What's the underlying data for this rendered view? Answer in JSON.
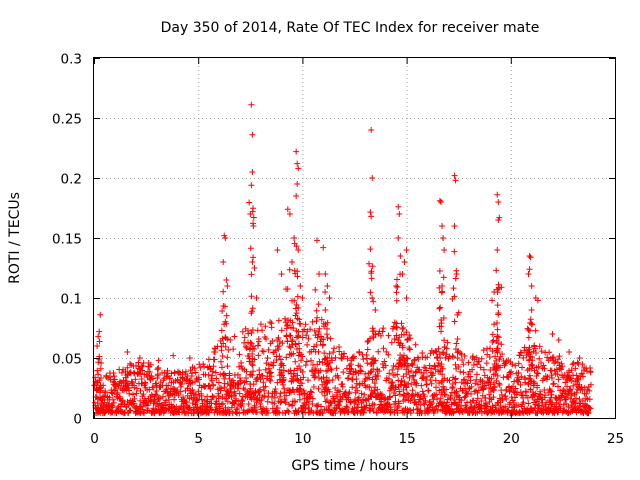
{
  "chart_data": {
    "type": "scatter",
    "title": "Day 350 of 2014, Rate Of TEC Index for receiver mate",
    "xlabel": "GPS time / hours",
    "ylabel": "ROTI / TECUs",
    "xlim": [
      0,
      25
    ],
    "ylim": [
      0,
      0.3
    ],
    "xticks": [
      0,
      5,
      10,
      15,
      20,
      25
    ],
    "xtick_labels": [
      "0",
      "5",
      "10",
      "15",
      "20",
      "25"
    ],
    "yticks": [
      0,
      0.05,
      0.1,
      0.15,
      0.2,
      0.25,
      0.3
    ],
    "ytick_labels": [
      "0",
      "0.05",
      "0.1",
      "0.15",
      "0.2",
      "0.25",
      "0.3"
    ],
    "grid": true,
    "marker": "+",
    "series": [
      {
        "name": "ROTI",
        "color": "#ff0000",
        "bands": [
          [
            0.0,
            0.03
          ],
          [
            1.0,
            0.035
          ],
          [
            2.0,
            0.045
          ],
          [
            3.0,
            0.04
          ],
          [
            4.0,
            0.035
          ],
          [
            5.0,
            0.04
          ],
          [
            6.0,
            0.06
          ],
          [
            7.0,
            0.07
          ],
          [
            8.0,
            0.075
          ],
          [
            9.0,
            0.08
          ],
          [
            10.0,
            0.075
          ],
          [
            11.0,
            0.08
          ],
          [
            12.0,
            0.05
          ],
          [
            13.0,
            0.06
          ],
          [
            14.0,
            0.08
          ],
          [
            15.0,
            0.07
          ],
          [
            16.0,
            0.05
          ],
          [
            17.0,
            0.06
          ],
          [
            18.0,
            0.045
          ],
          [
            19.0,
            0.06
          ],
          [
            20.0,
            0.045
          ],
          [
            21.0,
            0.06
          ],
          [
            22.0,
            0.05
          ],
          [
            23.0,
            0.045
          ],
          [
            23.8,
            0.04
          ]
        ],
        "peaks": [
          [
            0.15,
            0.06
          ],
          [
            0.2,
            0.068
          ],
          [
            0.25,
            0.072
          ],
          [
            0.3,
            0.086
          ],
          [
            1.6,
            0.055
          ],
          [
            2.2,
            0.05
          ],
          [
            3.1,
            0.048
          ],
          [
            3.8,
            0.052
          ],
          [
            4.6,
            0.05
          ],
          [
            6.2,
            0.13
          ],
          [
            6.25,
            0.152
          ],
          [
            6.3,
            0.15
          ],
          [
            6.35,
            0.115
          ],
          [
            6.4,
            0.11
          ],
          [
            7.55,
            0.261
          ],
          [
            7.6,
            0.236
          ],
          [
            7.6,
            0.205
          ],
          [
            7.55,
            0.194
          ],
          [
            7.5,
            0.17
          ],
          [
            7.65,
            0.16
          ],
          [
            7.6,
            0.13
          ],
          [
            7.7,
            0.125
          ],
          [
            7.8,
            0.1
          ],
          [
            8.8,
            0.14
          ],
          [
            9.0,
            0.12
          ],
          [
            9.3,
            0.174
          ],
          [
            9.4,
            0.17
          ],
          [
            9.5,
            0.13
          ],
          [
            9.7,
            0.222
          ],
          [
            9.75,
            0.212
          ],
          [
            9.8,
            0.208
          ],
          [
            9.75,
            0.195
          ],
          [
            9.7,
            0.185
          ],
          [
            9.6,
            0.15
          ],
          [
            9.8,
            0.14
          ],
          [
            9.9,
            0.11
          ],
          [
            10.0,
            0.1
          ],
          [
            10.7,
            0.148
          ],
          [
            10.8,
            0.12
          ],
          [
            11.0,
            0.142
          ],
          [
            11.1,
            0.12
          ],
          [
            11.2,
            0.11
          ],
          [
            11.3,
            0.1
          ],
          [
            11.1,
            0.09
          ],
          [
            13.3,
            0.24
          ],
          [
            13.35,
            0.2
          ],
          [
            13.3,
            0.168
          ],
          [
            13.4,
            0.097
          ],
          [
            13.5,
            0.09
          ],
          [
            14.6,
            0.176
          ],
          [
            14.65,
            0.17
          ],
          [
            14.6,
            0.15
          ],
          [
            14.7,
            0.135
          ],
          [
            14.8,
            0.12
          ],
          [
            14.9,
            0.13
          ],
          [
            15.0,
            0.14
          ],
          [
            15.0,
            0.1
          ],
          [
            14.5,
            0.11
          ],
          [
            16.6,
            0.181
          ],
          [
            16.65,
            0.18
          ],
          [
            16.7,
            0.16
          ],
          [
            16.75,
            0.15
          ],
          [
            16.8,
            0.14
          ],
          [
            16.7,
            0.11
          ],
          [
            17.3,
            0.202
          ],
          [
            17.35,
            0.198
          ],
          [
            17.3,
            0.16
          ],
          [
            17.4,
            0.12
          ],
          [
            19.35,
            0.186
          ],
          [
            19.4,
            0.18
          ],
          [
            19.45,
            0.167
          ],
          [
            19.4,
            0.165
          ],
          [
            19.35,
            0.14
          ],
          [
            19.3,
            0.123
          ],
          [
            19.2,
            0.105
          ],
          [
            19.1,
            0.098
          ],
          [
            20.9,
            0.135
          ],
          [
            20.95,
            0.134
          ],
          [
            20.9,
            0.124
          ],
          [
            20.85,
            0.12
          ],
          [
            21.0,
            0.11
          ],
          [
            21.2,
            0.1
          ],
          [
            21.3,
            0.098
          ],
          [
            21.0,
            0.09
          ],
          [
            22.0,
            0.07
          ],
          [
            22.3,
            0.065
          ],
          [
            22.8,
            0.055
          ],
          [
            23.3,
            0.05
          ]
        ]
      }
    ]
  }
}
